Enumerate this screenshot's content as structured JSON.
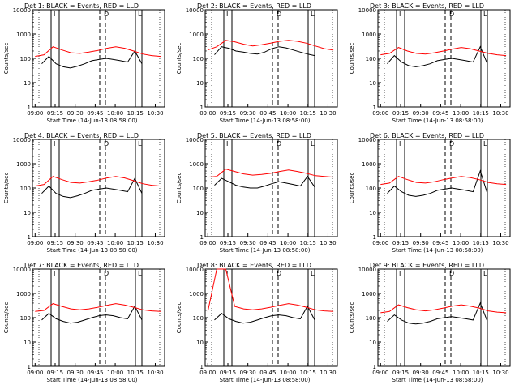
{
  "chart_data": [
    {
      "type": "line",
      "title": "Det 1: BLACK = Events, RED = LLD",
      "xlabel": "Start Time (14-Jun-13 08:58:00)",
      "ylabel": "Counts/sec",
      "x_ticks": [
        "09:00",
        "09:15",
        "09:30",
        "09:45",
        "10:00",
        "10:15",
        "10:30"
      ],
      "y_ticks": [
        "1",
        "10",
        "100",
        "1000",
        "10000"
      ],
      "ylim": [
        1,
        10000
      ],
      "ylog": true,
      "markers": [
        {
          "label": "I",
          "style": "solid"
        },
        {
          "label": "D",
          "style": "dashed"
        },
        {
          "label": "L",
          "style": "solid"
        }
      ],
      "series": [
        {
          "color": "#000000",
          "start": "09:05",
          "end": "10:20",
          "values": [
            60,
            120,
            60,
            45,
            40,
            48,
            60,
            80,
            90,
            100,
            90,
            80,
            70,
            200,
            60
          ]
        },
        {
          "color": "#ff0000",
          "start": "09:00",
          "end": "10:34",
          "values": [
            120,
            140,
            300,
            220,
            170,
            160,
            180,
            210,
            260,
            300,
            260,
            200,
            150,
            130,
            120
          ]
        }
      ]
    },
    {
      "type": "line",
      "title": "Det 2: BLACK = Events, RED = LLD",
      "xlabel": "Start Time (14-Jun-13 08:58:00)",
      "ylabel": "Counts/sec",
      "x_ticks": [
        "09:00",
        "09:15",
        "09:30",
        "09:45",
        "10:00",
        "10:15",
        "10:30"
      ],
      "y_ticks": [
        "1",
        "10",
        "100",
        "1000",
        "10000"
      ],
      "ylim": [
        1,
        10000
      ],
      "ylog": true,
      "markers": [
        {
          "label": "I",
          "style": "solid"
        },
        {
          "label": "D",
          "style": "dashed"
        },
        {
          "label": "L",
          "style": "solid"
        }
      ],
      "series": [
        {
          "color": "#000000",
          "start": "09:05",
          "end": "10:20",
          "values": [
            140,
            300,
            260,
            200,
            180,
            160,
            150,
            180,
            250,
            300,
            270,
            220,
            180,
            150,
            130
          ]
        },
        {
          "color": "#ff0000",
          "start": "09:00",
          "end": "10:34",
          "values": [
            220,
            300,
            550,
            480,
            380,
            320,
            360,
            420,
            500,
            550,
            500,
            420,
            320,
            250,
            220
          ]
        }
      ]
    },
    {
      "type": "line",
      "title": "Det 3: BLACK = Events, RED = LLD",
      "xlabel": "Start Time (14-Jun-13 08:58:00)",
      "ylabel": "Counts/sec",
      "x_ticks": [
        "09:00",
        "09:15",
        "09:30",
        "09:45",
        "10:00",
        "10:15",
        "10:30"
      ],
      "y_ticks": [
        "1",
        "10",
        "100",
        "1000",
        "10000"
      ],
      "ylim": [
        1,
        10000
      ],
      "ylog": true,
      "markers": [
        {
          "label": "I",
          "style": "solid"
        },
        {
          "label": "D",
          "style": "dashed"
        },
        {
          "label": "L",
          "style": "solid"
        }
      ],
      "series": [
        {
          "color": "#000000",
          "start": "09:05",
          "end": "10:20",
          "values": [
            60,
            130,
            70,
            50,
            45,
            50,
            60,
            80,
            90,
            100,
            90,
            80,
            70,
            300,
            60
          ]
        },
        {
          "color": "#ff0000",
          "start": "09:00",
          "end": "10:34",
          "values": [
            140,
            160,
            280,
            200,
            160,
            150,
            170,
            200,
            240,
            280,
            250,
            200,
            160,
            140,
            130
          ]
        }
      ]
    },
    {
      "type": "line",
      "title": "Det 4: BLACK = Events, RED = LLD",
      "xlabel": "Start Time (14-Jun-13 08:58:00)",
      "ylabel": "Counts/sec",
      "x_ticks": [
        "09:00",
        "09:15",
        "09:30",
        "09:45",
        "10:00",
        "10:15",
        "10:30"
      ],
      "y_ticks": [
        "1",
        "10",
        "100",
        "1000",
        "10000"
      ],
      "ylim": [
        1,
        10000
      ],
      "ylog": true,
      "markers": [
        {
          "label": "I",
          "style": "solid"
        },
        {
          "label": "D",
          "style": "dashed"
        },
        {
          "label": "L",
          "style": "solid"
        }
      ],
      "series": [
        {
          "color": "#000000",
          "start": "09:05",
          "end": "10:20",
          "values": [
            60,
            120,
            60,
            45,
            40,
            48,
            60,
            80,
            90,
            100,
            90,
            80,
            70,
            250,
            60
          ]
        },
        {
          "color": "#ff0000",
          "start": "09:00",
          "end": "10:34",
          "values": [
            120,
            140,
            300,
            220,
            170,
            160,
            180,
            210,
            260,
            300,
            260,
            200,
            150,
            130,
            120
          ]
        }
      ]
    },
    {
      "type": "line",
      "title": "Det 5: BLACK = Events, RED = LLD",
      "xlabel": "Start Time (14-Jun-13 08:58:00)",
      "ylabel": "Counts/sec",
      "x_ticks": [
        "09:00",
        "09:15",
        "09:30",
        "09:45",
        "10:00",
        "10:15",
        "10:30"
      ],
      "y_ticks": [
        "1",
        "10",
        "100",
        "1000",
        "10000"
      ],
      "ylim": [
        1,
        10000
      ],
      "ylog": true,
      "markers": [
        {
          "label": "I",
          "style": "solid"
        },
        {
          "label": "D",
          "style": "dashed"
        },
        {
          "label": "L",
          "style": "solid"
        }
      ],
      "series": [
        {
          "color": "#000000",
          "start": "09:05",
          "end": "10:20",
          "values": [
            130,
            250,
            180,
            130,
            110,
            100,
            100,
            120,
            150,
            180,
            160,
            140,
            120,
            300,
            110
          ]
        },
        {
          "color": "#ff0000",
          "start": "09:00",
          "end": "10:34",
          "values": [
            280,
            300,
            600,
            480,
            380,
            340,
            360,
            400,
            480,
            550,
            480,
            400,
            320,
            300,
            280
          ]
        }
      ]
    },
    {
      "type": "line",
      "title": "Det 6: BLACK = Events, RED = LLD",
      "xlabel": "Start Time (14-Jun-13 08:58:00)",
      "ylabel": "Counts/sec",
      "x_ticks": [
        "09:00",
        "09:15",
        "09:30",
        "09:45",
        "10:00",
        "10:15",
        "10:30"
      ],
      "y_ticks": [
        "1",
        "10",
        "100",
        "1000",
        "10000"
      ],
      "ylim": [
        1,
        10000
      ],
      "ylog": true,
      "markers": [
        {
          "label": "I",
          "style": "solid"
        },
        {
          "label": "D",
          "style": "dashed"
        },
        {
          "label": "L",
          "style": "solid"
        }
      ],
      "series": [
        {
          "color": "#000000",
          "start": "09:05",
          "end": "10:20",
          "values": [
            60,
            120,
            70,
            50,
            45,
            50,
            60,
            80,
            90,
            100,
            90,
            80,
            70,
            500,
            60
          ]
        },
        {
          "color": "#ff0000",
          "start": "09:00",
          "end": "10:34",
          "values": [
            140,
            160,
            300,
            220,
            170,
            160,
            180,
            220,
            260,
            300,
            270,
            220,
            170,
            150,
            140
          ]
        }
      ]
    },
    {
      "type": "line",
      "title": "Det 7: BLACK = Events, RED = LLD",
      "xlabel": "Start Time (14-Jun-13 08:58:00)",
      "ylabel": "Counts/sec",
      "x_ticks": [
        "09:00",
        "09:15",
        "09:30",
        "09:45",
        "10:00",
        "10:15",
        "10:30"
      ],
      "y_ticks": [
        "1",
        "10",
        "100",
        "1000",
        "10000"
      ],
      "ylim": [
        1,
        10000
      ],
      "ylog": true,
      "markers": [
        {
          "label": "I",
          "style": "solid"
        },
        {
          "label": "D",
          "style": "dashed"
        },
        {
          "label": "L",
          "style": "solid"
        }
      ],
      "series": [
        {
          "color": "#000000",
          "start": "09:05",
          "end": "10:20",
          "values": [
            80,
            150,
            90,
            70,
            60,
            65,
            80,
            100,
            120,
            130,
            120,
            100,
            90,
            300,
            80
          ]
        },
        {
          "color": "#ff0000",
          "start": "09:00",
          "end": "10:34",
          "values": [
            180,
            200,
            380,
            290,
            230,
            210,
            230,
            270,
            320,
            380,
            330,
            270,
            210,
            190,
            180
          ]
        }
      ]
    },
    {
      "type": "line",
      "title": "Det 8: BLACK = Events, RED = LLD",
      "xlabel": "Start Time (14-Jun-13 08:58:00)",
      "ylabel": "Counts/sec",
      "x_ticks": [
        "09:00",
        "09:15",
        "09:30",
        "09:45",
        "10:00",
        "10:15",
        "10:30"
      ],
      "y_ticks": [
        "1",
        "10",
        "100",
        "1000",
        "10000"
      ],
      "ylim": [
        1,
        10000
      ],
      "ylog": true,
      "markers": [
        {
          "label": "I",
          "style": "solid"
        },
        {
          "label": "D",
          "style": "dashed"
        },
        {
          "label": "L",
          "style": "solid"
        }
      ],
      "series": [
        {
          "color": "#000000",
          "start": "09:05",
          "end": "10:20",
          "values": [
            80,
            150,
            90,
            70,
            60,
            65,
            80,
            100,
            120,
            130,
            120,
            100,
            90,
            300,
            80
          ]
        },
        {
          "color": "#ff0000",
          "start": "09:00",
          "end": "10:34",
          "values": [
            180,
            10000,
            10000,
            290,
            230,
            210,
            230,
            270,
            320,
            380,
            330,
            270,
            210,
            190,
            180
          ]
        }
      ]
    },
    {
      "type": "line",
      "title": "Det 9: BLACK = Events, RED = LLD",
      "xlabel": "Start Time (14-Jun-13 08:58:00)",
      "ylabel": "Counts/sec",
      "x_ticks": [
        "09:00",
        "09:15",
        "09:30",
        "09:45",
        "10:00",
        "10:15",
        "10:30"
      ],
      "y_ticks": [
        "1",
        "10",
        "100",
        "1000",
        "10000"
      ],
      "ylim": [
        1,
        10000
      ],
      "ylog": true,
      "markers": [
        {
          "label": "I",
          "style": "solid"
        },
        {
          "label": "D",
          "style": "dashed"
        },
        {
          "label": "L",
          "style": "solid"
        }
      ],
      "series": [
        {
          "color": "#000000",
          "start": "09:05",
          "end": "10:20",
          "values": [
            70,
            130,
            80,
            60,
            55,
            60,
            70,
            90,
            100,
            110,
            100,
            90,
            80,
            400,
            70
          ]
        },
        {
          "color": "#ff0000",
          "start": "09:00",
          "end": "10:34",
          "values": [
            160,
            180,
            340,
            260,
            210,
            190,
            210,
            250,
            300,
            340,
            300,
            250,
            190,
            170,
            160
          ]
        }
      ]
    }
  ]
}
